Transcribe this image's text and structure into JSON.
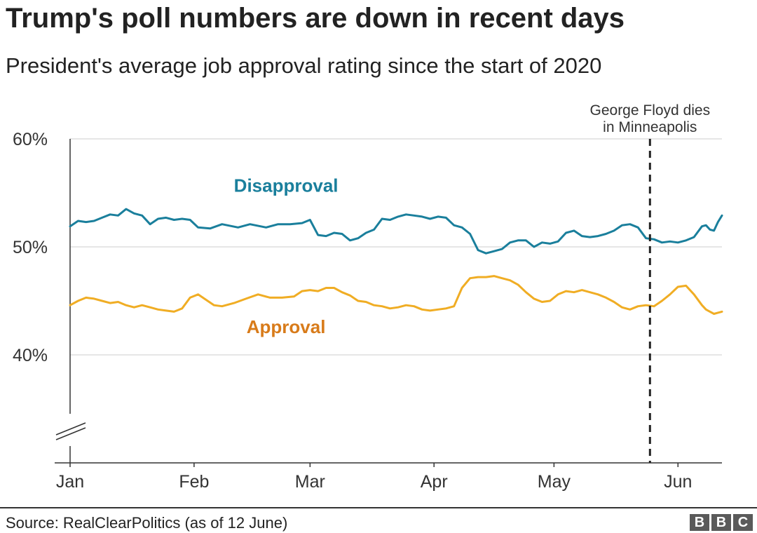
{
  "header": {
    "title": "Trump's poll numbers are down in recent days",
    "subtitle": "President's average job approval rating since the start of 2020"
  },
  "footer": {
    "source": "Source: RealClearPolitics (as of 12 June)",
    "logo_letters": [
      "B",
      "B",
      "C"
    ]
  },
  "chart_data": {
    "type": "line",
    "title": "Trump's poll numbers are down in recent days",
    "subtitle": "President's average job approval rating since the start of 2020",
    "xlabel": "",
    "ylabel": "",
    "x_domain": [
      "2020-01-01",
      "2020-06-12"
    ],
    "ylim": [
      30,
      60
    ],
    "y_axis_break": true,
    "grid": true,
    "y_ticks": [
      {
        "value": 60,
        "label": "60%"
      },
      {
        "value": 50,
        "label": "50%"
      },
      {
        "value": 40,
        "label": "40%"
      }
    ],
    "x_ticks": [
      {
        "date": "2020-01-01",
        "label": "Jan"
      },
      {
        "date": "2020-02-01",
        "label": "Feb"
      },
      {
        "date": "2020-03-01",
        "label": "Mar"
      },
      {
        "date": "2020-04-01",
        "label": "Apr"
      },
      {
        "date": "2020-05-01",
        "label": "May"
      },
      {
        "date": "2020-06-01",
        "label": "Jun"
      }
    ],
    "annotations": [
      {
        "date": "2020-05-25",
        "text_lines": [
          "George Floyd dies",
          "in Minneapolis"
        ],
        "style": "dashed-vertical-line"
      }
    ],
    "series": [
      {
        "name": "Disapproval",
        "color": "#1a7f9c",
        "label_position": {
          "date": "2020-02-24",
          "value": 55.1
        },
        "points": [
          [
            "2020-01-01",
            51.9
          ],
          [
            "2020-01-03",
            52.4
          ],
          [
            "2020-01-05",
            52.3
          ],
          [
            "2020-01-07",
            52.4
          ],
          [
            "2020-01-09",
            52.7
          ],
          [
            "2020-01-11",
            53.0
          ],
          [
            "2020-01-13",
            52.9
          ],
          [
            "2020-01-15",
            53.5
          ],
          [
            "2020-01-17",
            53.1
          ],
          [
            "2020-01-19",
            52.9
          ],
          [
            "2020-01-21",
            52.1
          ],
          [
            "2020-01-23",
            52.6
          ],
          [
            "2020-01-25",
            52.7
          ],
          [
            "2020-01-27",
            52.5
          ],
          [
            "2020-01-29",
            52.6
          ],
          [
            "2020-01-31",
            52.5
          ],
          [
            "2020-02-02",
            51.8
          ],
          [
            "2020-02-05",
            51.7
          ],
          [
            "2020-02-08",
            52.1
          ],
          [
            "2020-02-12",
            51.8
          ],
          [
            "2020-02-15",
            52.1
          ],
          [
            "2020-02-19",
            51.8
          ],
          [
            "2020-02-22",
            52.1
          ],
          [
            "2020-02-25",
            52.1
          ],
          [
            "2020-02-28",
            52.2
          ],
          [
            "2020-03-01",
            52.5
          ],
          [
            "2020-03-03",
            51.1
          ],
          [
            "2020-03-05",
            51.0
          ],
          [
            "2020-03-07",
            51.3
          ],
          [
            "2020-03-09",
            51.2
          ],
          [
            "2020-03-11",
            50.6
          ],
          [
            "2020-03-13",
            50.8
          ],
          [
            "2020-03-15",
            51.3
          ],
          [
            "2020-03-17",
            51.6
          ],
          [
            "2020-03-19",
            52.6
          ],
          [
            "2020-03-21",
            52.5
          ],
          [
            "2020-03-23",
            52.8
          ],
          [
            "2020-03-25",
            53.0
          ],
          [
            "2020-03-27",
            52.9
          ],
          [
            "2020-03-29",
            52.8
          ],
          [
            "2020-03-31",
            52.6
          ],
          [
            "2020-04-02",
            52.8
          ],
          [
            "2020-04-04",
            52.7
          ],
          [
            "2020-04-06",
            52.0
          ],
          [
            "2020-04-08",
            51.8
          ],
          [
            "2020-04-10",
            51.2
          ],
          [
            "2020-04-12",
            49.7
          ],
          [
            "2020-04-14",
            49.4
          ],
          [
            "2020-04-16",
            49.6
          ],
          [
            "2020-04-18",
            49.8
          ],
          [
            "2020-04-20",
            50.4
          ],
          [
            "2020-04-22",
            50.6
          ],
          [
            "2020-04-24",
            50.6
          ],
          [
            "2020-04-26",
            50.0
          ],
          [
            "2020-04-28",
            50.4
          ],
          [
            "2020-04-30",
            50.3
          ],
          [
            "2020-05-02",
            50.5
          ],
          [
            "2020-05-04",
            51.3
          ],
          [
            "2020-05-06",
            51.5
          ],
          [
            "2020-05-08",
            51.0
          ],
          [
            "2020-05-10",
            50.9
          ],
          [
            "2020-05-12",
            51.0
          ],
          [
            "2020-05-14",
            51.2
          ],
          [
            "2020-05-16",
            51.5
          ],
          [
            "2020-05-18",
            52.0
          ],
          [
            "2020-05-20",
            52.1
          ],
          [
            "2020-05-22",
            51.8
          ],
          [
            "2020-05-24",
            50.8
          ],
          [
            "2020-05-26",
            50.7
          ],
          [
            "2020-05-28",
            50.4
          ],
          [
            "2020-05-30",
            50.5
          ],
          [
            "2020-06-01",
            50.4
          ],
          [
            "2020-06-03",
            50.6
          ],
          [
            "2020-06-05",
            50.9
          ],
          [
            "2020-06-07",
            51.9
          ],
          [
            "2020-06-08",
            52.0
          ],
          [
            "2020-06-09",
            51.6
          ],
          [
            "2020-06-10",
            51.5
          ],
          [
            "2020-06-11",
            52.3
          ],
          [
            "2020-06-12",
            52.9
          ]
        ]
      },
      {
        "name": "Approval",
        "color": "#f0ad24",
        "label_color": "#d87b1a",
        "label_position": {
          "date": "2020-02-24",
          "value": 42.0
        },
        "points": [
          [
            "2020-01-01",
            44.6
          ],
          [
            "2020-01-03",
            45.0
          ],
          [
            "2020-01-05",
            45.3
          ],
          [
            "2020-01-07",
            45.2
          ],
          [
            "2020-01-09",
            45.0
          ],
          [
            "2020-01-11",
            44.8
          ],
          [
            "2020-01-13",
            44.9
          ],
          [
            "2020-01-15",
            44.6
          ],
          [
            "2020-01-17",
            44.4
          ],
          [
            "2020-01-19",
            44.6
          ],
          [
            "2020-01-21",
            44.4
          ],
          [
            "2020-01-23",
            44.2
          ],
          [
            "2020-01-25",
            44.1
          ],
          [
            "2020-01-27",
            44.0
          ],
          [
            "2020-01-29",
            44.3
          ],
          [
            "2020-01-31",
            45.3
          ],
          [
            "2020-02-02",
            45.6
          ],
          [
            "2020-02-04",
            45.1
          ],
          [
            "2020-02-06",
            44.6
          ],
          [
            "2020-02-08",
            44.5
          ],
          [
            "2020-02-11",
            44.8
          ],
          [
            "2020-02-14",
            45.2
          ],
          [
            "2020-02-17",
            45.6
          ],
          [
            "2020-02-20",
            45.3
          ],
          [
            "2020-02-23",
            45.3
          ],
          [
            "2020-02-26",
            45.4
          ],
          [
            "2020-02-28",
            45.9
          ],
          [
            "2020-03-01",
            46.0
          ],
          [
            "2020-03-03",
            45.9
          ],
          [
            "2020-03-05",
            46.2
          ],
          [
            "2020-03-07",
            46.2
          ],
          [
            "2020-03-09",
            45.8
          ],
          [
            "2020-03-11",
            45.5
          ],
          [
            "2020-03-13",
            45.0
          ],
          [
            "2020-03-15",
            44.9
          ],
          [
            "2020-03-17",
            44.6
          ],
          [
            "2020-03-19",
            44.5
          ],
          [
            "2020-03-21",
            44.3
          ],
          [
            "2020-03-23",
            44.4
          ],
          [
            "2020-03-25",
            44.6
          ],
          [
            "2020-03-27",
            44.5
          ],
          [
            "2020-03-29",
            44.2
          ],
          [
            "2020-03-31",
            44.1
          ],
          [
            "2020-04-02",
            44.2
          ],
          [
            "2020-04-04",
            44.3
          ],
          [
            "2020-04-06",
            44.5
          ],
          [
            "2020-04-08",
            46.2
          ],
          [
            "2020-04-10",
            47.1
          ],
          [
            "2020-04-12",
            47.2
          ],
          [
            "2020-04-14",
            47.2
          ],
          [
            "2020-04-16",
            47.3
          ],
          [
            "2020-04-18",
            47.1
          ],
          [
            "2020-04-20",
            46.9
          ],
          [
            "2020-04-22",
            46.5
          ],
          [
            "2020-04-24",
            45.8
          ],
          [
            "2020-04-26",
            45.2
          ],
          [
            "2020-04-28",
            44.9
          ],
          [
            "2020-04-30",
            45.0
          ],
          [
            "2020-05-02",
            45.6
          ],
          [
            "2020-05-04",
            45.9
          ],
          [
            "2020-05-06",
            45.8
          ],
          [
            "2020-05-08",
            46.0
          ],
          [
            "2020-05-10",
            45.8
          ],
          [
            "2020-05-12",
            45.6
          ],
          [
            "2020-05-14",
            45.3
          ],
          [
            "2020-05-16",
            44.9
          ],
          [
            "2020-05-18",
            44.4
          ],
          [
            "2020-05-20",
            44.2
          ],
          [
            "2020-05-22",
            44.5
          ],
          [
            "2020-05-24",
            44.6
          ],
          [
            "2020-05-26",
            44.5
          ],
          [
            "2020-05-28",
            45.0
          ],
          [
            "2020-05-30",
            45.6
          ],
          [
            "2020-06-01",
            46.3
          ],
          [
            "2020-06-03",
            46.4
          ],
          [
            "2020-06-05",
            45.6
          ],
          [
            "2020-06-07",
            44.6
          ],
          [
            "2020-06-08",
            44.2
          ],
          [
            "2020-06-09",
            44.0
          ],
          [
            "2020-06-10",
            43.8
          ],
          [
            "2020-06-11",
            43.9
          ],
          [
            "2020-06-12",
            44.0
          ]
        ]
      }
    ]
  }
}
